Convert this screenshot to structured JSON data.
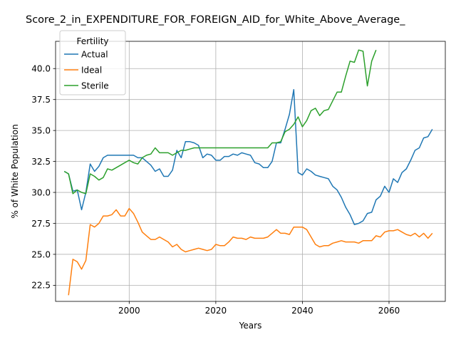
{
  "chart_data": {
    "type": "line",
    "title": "Score_2_in_EXPENDITURE_FOR_FOREIGN_AID_for_White_Above_Average_",
    "xlabel": "Years",
    "ylabel": "% of White Population",
    "xlim": [
      1983,
      2073
    ],
    "ylim": [
      21.2,
      42.2
    ],
    "x_ticks": [
      2000,
      2020,
      2040,
      2060
    ],
    "y_ticks": [
      22.5,
      25.0,
      27.5,
      30.0,
      32.5,
      35.0,
      37.5,
      40.0
    ],
    "y_tick_labels": [
      "22.5",
      "25.0",
      "27.5",
      "30.0",
      "32.5",
      "35.0",
      "37.5",
      "40.0"
    ],
    "grid": true,
    "legend": {
      "title": "Fertility",
      "position": "top-left"
    },
    "series": [
      {
        "name": "Actual",
        "color": "#1f77b4",
        "points": [
          [
            1985,
            31.7
          ],
          [
            1986,
            31.5
          ],
          [
            1987,
            30.1
          ],
          [
            1988,
            30.2
          ],
          [
            1989,
            28.6
          ],
          [
            1990,
            30.0
          ],
          [
            1991,
            32.3
          ],
          [
            1992,
            31.7
          ],
          [
            1993,
            32.1
          ],
          [
            1994,
            32.8
          ],
          [
            1995,
            33.0
          ],
          [
            1996,
            33.0
          ],
          [
            1997,
            33.0
          ],
          [
            1998,
            33.0
          ],
          [
            1999,
            33.0
          ],
          [
            2000,
            33.0
          ],
          [
            2001,
            33.0
          ],
          [
            2002,
            32.8
          ],
          [
            2003,
            32.8
          ],
          [
            2004,
            32.5
          ],
          [
            2005,
            32.2
          ],
          [
            2006,
            31.7
          ],
          [
            2007,
            31.9
          ],
          [
            2008,
            31.3
          ],
          [
            2009,
            31.3
          ],
          [
            2010,
            31.8
          ],
          [
            2011,
            33.4
          ],
          [
            2012,
            32.8
          ],
          [
            2013,
            34.1
          ],
          [
            2014,
            34.1
          ],
          [
            2015,
            34.0
          ],
          [
            2016,
            33.8
          ],
          [
            2017,
            32.8
          ],
          [
            2018,
            33.1
          ],
          [
            2019,
            33.0
          ],
          [
            2020,
            32.6
          ],
          [
            2021,
            32.6
          ],
          [
            2022,
            32.9
          ],
          [
            2023,
            32.9
          ],
          [
            2024,
            33.1
          ],
          [
            2025,
            33.0
          ],
          [
            2026,
            33.2
          ],
          [
            2027,
            33.1
          ],
          [
            2028,
            33.0
          ],
          [
            2029,
            32.4
          ],
          [
            2030,
            32.3
          ],
          [
            2031,
            32.0
          ],
          [
            2032,
            32.0
          ],
          [
            2033,
            32.5
          ],
          [
            2034,
            34.0
          ],
          [
            2035,
            34.0
          ],
          [
            2036,
            35.1
          ],
          [
            2037,
            36.3
          ],
          [
            2038,
            38.3
          ],
          [
            2039,
            31.6
          ],
          [
            2040,
            31.4
          ],
          [
            2041,
            31.9
          ],
          [
            2042,
            31.7
          ],
          [
            2043,
            31.4
          ],
          [
            2044,
            31.3
          ],
          [
            2045,
            31.2
          ],
          [
            2046,
            31.1
          ],
          [
            2047,
            30.5
          ],
          [
            2048,
            30.2
          ],
          [
            2049,
            29.6
          ],
          [
            2050,
            28.8
          ],
          [
            2051,
            28.2
          ],
          [
            2052,
            27.4
          ],
          [
            2053,
            27.5
          ],
          [
            2054,
            27.7
          ],
          [
            2055,
            28.3
          ],
          [
            2056,
            28.4
          ],
          [
            2057,
            29.4
          ],
          [
            2058,
            29.7
          ],
          [
            2059,
            30.5
          ],
          [
            2060,
            30.0
          ],
          [
            2061,
            31.1
          ],
          [
            2062,
            30.8
          ],
          [
            2063,
            31.6
          ],
          [
            2064,
            31.9
          ],
          [
            2065,
            32.6
          ],
          [
            2066,
            33.4
          ],
          [
            2067,
            33.6
          ],
          [
            2068,
            34.4
          ],
          [
            2069,
            34.5
          ],
          [
            2070,
            35.1
          ]
        ]
      },
      {
        "name": "Ideal",
        "color": "#ff7f0e",
        "points": [
          [
            1986,
            21.7
          ],
          [
            1987,
            24.6
          ],
          [
            1988,
            24.4
          ],
          [
            1989,
            23.8
          ],
          [
            1990,
            24.5
          ],
          [
            1991,
            27.4
          ],
          [
            1992,
            27.2
          ],
          [
            1993,
            27.5
          ],
          [
            1994,
            28.1
          ],
          [
            1995,
            28.1
          ],
          [
            1996,
            28.2
          ],
          [
            1997,
            28.6
          ],
          [
            1998,
            28.1
          ],
          [
            1999,
            28.1
          ],
          [
            2000,
            28.7
          ],
          [
            2001,
            28.3
          ],
          [
            2002,
            27.6
          ],
          [
            2003,
            26.8
          ],
          [
            2004,
            26.5
          ],
          [
            2005,
            26.2
          ],
          [
            2006,
            26.2
          ],
          [
            2007,
            26.4
          ],
          [
            2008,
            26.2
          ],
          [
            2009,
            26.0
          ],
          [
            2010,
            25.6
          ],
          [
            2011,
            25.8
          ],
          [
            2012,
            25.4
          ],
          [
            2013,
            25.2
          ],
          [
            2014,
            25.3
          ],
          [
            2015,
            25.4
          ],
          [
            2016,
            25.5
          ],
          [
            2017,
            25.4
          ],
          [
            2018,
            25.3
          ],
          [
            2019,
            25.4
          ],
          [
            2020,
            25.8
          ],
          [
            2021,
            25.7
          ],
          [
            2022,
            25.7
          ],
          [
            2023,
            26.0
          ],
          [
            2024,
            26.4
          ],
          [
            2025,
            26.3
          ],
          [
            2026,
            26.3
          ],
          [
            2027,
            26.2
          ],
          [
            2028,
            26.4
          ],
          [
            2029,
            26.3
          ],
          [
            2030,
            26.3
          ],
          [
            2031,
            26.3
          ],
          [
            2032,
            26.4
          ],
          [
            2033,
            26.7
          ],
          [
            2034,
            27.0
          ],
          [
            2035,
            26.7
          ],
          [
            2036,
            26.7
          ],
          [
            2037,
            26.6
          ],
          [
            2038,
            27.2
          ],
          [
            2039,
            27.2
          ],
          [
            2040,
            27.2
          ],
          [
            2041,
            27.0
          ],
          [
            2042,
            26.4
          ],
          [
            2043,
            25.8
          ],
          [
            2044,
            25.6
          ],
          [
            2045,
            25.7
          ],
          [
            2046,
            25.7
          ],
          [
            2047,
            25.9
          ],
          [
            2048,
            26.0
          ],
          [
            2049,
            26.1
          ],
          [
            2050,
            26.0
          ],
          [
            2051,
            26.0
          ],
          [
            2052,
            26.0
          ],
          [
            2053,
            25.9
          ],
          [
            2054,
            26.1
          ],
          [
            2055,
            26.1
          ],
          [
            2056,
            26.1
          ],
          [
            2057,
            26.5
          ],
          [
            2058,
            26.4
          ],
          [
            2059,
            26.8
          ],
          [
            2060,
            26.9
          ],
          [
            2061,
            26.9
          ],
          [
            2062,
            27.0
          ],
          [
            2063,
            26.8
          ],
          [
            2064,
            26.6
          ],
          [
            2065,
            26.5
          ],
          [
            2066,
            26.7
          ],
          [
            2067,
            26.4
          ],
          [
            2068,
            26.7
          ],
          [
            2069,
            26.3
          ],
          [
            2070,
            26.7
          ]
        ]
      },
      {
        "name": "Sterile",
        "color": "#2ca02c",
        "points": [
          [
            1985,
            31.7
          ],
          [
            1986,
            31.5
          ],
          [
            1987,
            29.9
          ],
          [
            1988,
            30.2
          ],
          [
            1989,
            30.0
          ],
          [
            1990,
            29.9
          ],
          [
            1991,
            31.5
          ],
          [
            1992,
            31.3
          ],
          [
            1993,
            31.0
          ],
          [
            1994,
            31.2
          ],
          [
            1995,
            31.9
          ],
          [
            1996,
            31.8
          ],
          [
            1997,
            32.0
          ],
          [
            1998,
            32.2
          ],
          [
            1999,
            32.4
          ],
          [
            2000,
            32.6
          ],
          [
            2001,
            32.4
          ],
          [
            2002,
            32.3
          ],
          [
            2003,
            32.8
          ],
          [
            2004,
            33.0
          ],
          [
            2005,
            33.1
          ],
          [
            2006,
            33.6
          ],
          [
            2007,
            33.2
          ],
          [
            2008,
            33.2
          ],
          [
            2009,
            33.2
          ],
          [
            2010,
            33.0
          ],
          [
            2011,
            33.2
          ],
          [
            2012,
            33.4
          ],
          [
            2013,
            33.4
          ],
          [
            2014,
            33.5
          ],
          [
            2015,
            33.6
          ],
          [
            2016,
            33.6
          ],
          [
            2017,
            33.6
          ],
          [
            2018,
            33.6
          ],
          [
            2019,
            33.6
          ],
          [
            2020,
            33.6
          ],
          [
            2021,
            33.6
          ],
          [
            2022,
            33.6
          ],
          [
            2023,
            33.6
          ],
          [
            2024,
            33.6
          ],
          [
            2025,
            33.6
          ],
          [
            2026,
            33.6
          ],
          [
            2027,
            33.6
          ],
          [
            2028,
            33.6
          ],
          [
            2029,
            33.6
          ],
          [
            2030,
            33.6
          ],
          [
            2031,
            33.6
          ],
          [
            2032,
            33.6
          ],
          [
            2033,
            34.0
          ],
          [
            2034,
            34.0
          ],
          [
            2035,
            34.1
          ],
          [
            2036,
            34.9
          ],
          [
            2037,
            35.1
          ],
          [
            2038,
            35.5
          ],
          [
            2039,
            36.1
          ],
          [
            2040,
            35.3
          ],
          [
            2041,
            35.8
          ],
          [
            2042,
            36.6
          ],
          [
            2043,
            36.8
          ],
          [
            2044,
            36.2
          ],
          [
            2045,
            36.6
          ],
          [
            2046,
            36.7
          ],
          [
            2047,
            37.4
          ],
          [
            2048,
            38.1
          ],
          [
            2049,
            38.1
          ],
          [
            2050,
            39.4
          ],
          [
            2051,
            40.6
          ],
          [
            2052,
            40.5
          ],
          [
            2053,
            41.5
          ],
          [
            2054,
            41.4
          ],
          [
            2055,
            38.6
          ],
          [
            2056,
            40.6
          ],
          [
            2057,
            41.5
          ]
        ]
      }
    ]
  }
}
